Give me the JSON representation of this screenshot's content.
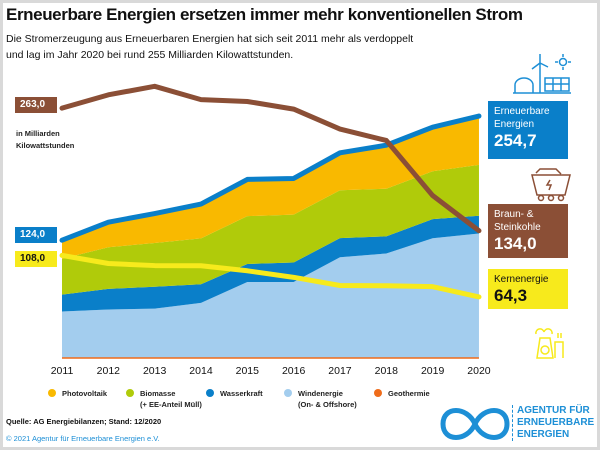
{
  "header": {
    "title": "Erneuerbare Energien ersetzen immer mehr konventionellen Strom",
    "subtitle": "Die Stromerzeugung aus Erneuerbaren Energien hat sich seit 2011 mehr als verdoppelt\nund lag im Jahr 2020 bei rund 255 Milliarden Kilowattstunden."
  },
  "chart_data": {
    "type": "area",
    "unit_label": "in Milliarden\nKilowattstunden",
    "categories": [
      "2011",
      "2012",
      "2013",
      "2014",
      "2015",
      "2016",
      "2017",
      "2018",
      "2019",
      "2020"
    ],
    "ylim": [
      0,
      290
    ],
    "grid": false,
    "legend_placement": "bottom",
    "series": [
      {
        "name": "Windenergie\n(On- & Offshore)",
        "type": "stacked-area",
        "color": "#a3cdee",
        "values": [
          49,
          51,
          52,
          58,
          80,
          80,
          106,
          110,
          126,
          131
        ]
      },
      {
        "name": "Wasserkraft",
        "type": "stacked-area",
        "color": "#0a7fc9",
        "values": [
          17.7,
          21.8,
          23,
          19.6,
          19,
          20.5,
          20.2,
          18,
          20.2,
          18.7
        ]
      },
      {
        "name": "Biomasse\n(+ EE-Anteil Müll)",
        "type": "stacked-area",
        "color": "#b0cb0a",
        "values": [
          37.7,
          43.8,
          46,
          48.3,
          50.3,
          50.4,
          50.4,
          50.2,
          50.4,
          53.6
        ]
      },
      {
        "name": "Photovoltaik",
        "type": "stacked-area",
        "color": "#f9b900",
        "values": [
          19.6,
          26.4,
          31,
          36.1,
          38.7,
          38.1,
          39.4,
          45.8,
          46.4,
          51.4
        ]
      },
      {
        "name": "Geothermie",
        "type": "stacked-area",
        "color": "#ef6c1a",
        "values": [
          0.02,
          0.03,
          0.08,
          0.1,
          0.13,
          0.18,
          0.16,
          0.18,
          0.2,
          0.2
        ]
      }
    ],
    "lines": [
      {
        "name": "Erneuerbare Energien",
        "color": "#0a7fc9",
        "values": [
          124,
          143,
          152,
          162,
          188,
          189,
          216,
          224,
          243,
          254.7
        ],
        "start_label": "124,0",
        "end_label": "254,7"
      },
      {
        "name": "Braun- & Steinkohle",
        "color": "#8b4f36",
        "values": [
          263,
          277,
          286,
          272,
          270,
          262,
          241,
          229,
          171,
          134
        ],
        "start_label": "263,0",
        "end_label": "134,0"
      },
      {
        "name": "Kernenergie",
        "color": "#f7ea1c",
        "values": [
          108,
          99.5,
          97.3,
          97.1,
          91.8,
          84.9,
          76.3,
          76,
          75.1,
          64.3
        ],
        "start_label": "108,0",
        "end_label": "64,3"
      }
    ]
  },
  "labels": {
    "ee_name": "Erneuerbare\nEnergien",
    "coal_name": "Braun- &\nSteinkohle",
    "nuclear_name": "Kernenergie"
  },
  "legend": [
    "Photovoltaik",
    "Biomasse\n(+ EE-Anteil Müll)",
    "Wasserkraft",
    "Windenergie\n(On- & Offshore)",
    "Geothermie"
  ],
  "footer": {
    "source": "Quelle: AG Energiebilanzen; Stand: 12/2020",
    "copyright": "© 2021 Agentur für Erneuerbare Energien e.V.",
    "logo_text": "AGENTUR FÜR\nERNEUERBARE\nENERGIEN"
  },
  "icons": [
    "renewables-icon",
    "coal-cart-icon",
    "nuclear-plant-icon",
    "aee-logo-icon"
  ]
}
